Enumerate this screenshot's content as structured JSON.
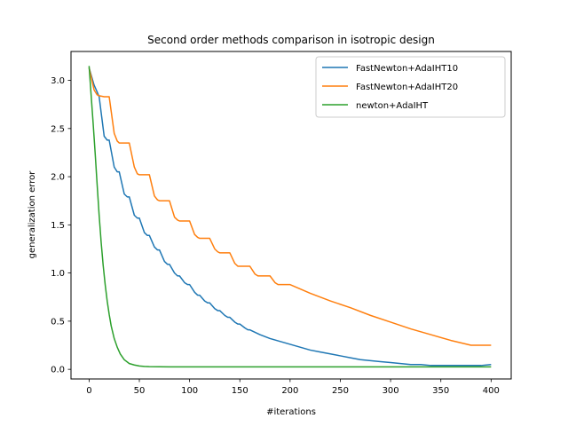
{
  "chart_data": {
    "type": "line",
    "title": "Second order methods comparison in isotropic design",
    "xlabel": "#iterations",
    "ylabel": "generalization error",
    "xlim": [
      -18,
      420
    ],
    "ylim": [
      -0.1,
      3.3
    ],
    "xticks": [
      0,
      50,
      100,
      150,
      200,
      250,
      300,
      350,
      400
    ],
    "yticks": [
      0.0,
      0.5,
      1.0,
      1.5,
      2.0,
      2.5,
      3.0
    ],
    "xtick_labels": [
      "0",
      "50",
      "100",
      "150",
      "200",
      "250",
      "300",
      "350",
      "400"
    ],
    "ytick_labels": [
      "0.0",
      "0.5",
      "1.0",
      "1.5",
      "2.0",
      "2.5",
      "3.0"
    ],
    "grid": false,
    "legend_position": "upper right",
    "series": [
      {
        "name": "FastNewton+AdaIHT10",
        "color": "#1f77b4",
        "x": [
          0,
          5,
          8,
          10,
          15,
          18,
          20,
          25,
          28,
          30,
          35,
          38,
          40,
          45,
          48,
          50,
          55,
          58,
          60,
          65,
          68,
          70,
          75,
          78,
          80,
          85,
          88,
          90,
          95,
          98,
          100,
          105,
          108,
          110,
          115,
          118,
          120,
          125,
          128,
          130,
          135,
          138,
          140,
          145,
          148,
          150,
          155,
          158,
          160,
          170,
          180,
          190,
          200,
          210,
          220,
          230,
          240,
          250,
          260,
          270,
          280,
          290,
          300,
          310,
          320,
          330,
          340,
          350,
          360,
          370,
          380,
          390,
          400
        ],
        "y": [
          3.13,
          2.95,
          2.88,
          2.83,
          2.42,
          2.38,
          2.38,
          2.1,
          2.05,
          2.05,
          1.82,
          1.79,
          1.79,
          1.6,
          1.57,
          1.57,
          1.42,
          1.39,
          1.39,
          1.27,
          1.24,
          1.24,
          1.12,
          1.09,
          1.09,
          1.0,
          0.97,
          0.97,
          0.9,
          0.88,
          0.88,
          0.8,
          0.77,
          0.77,
          0.71,
          0.69,
          0.69,
          0.63,
          0.61,
          0.61,
          0.56,
          0.54,
          0.54,
          0.49,
          0.47,
          0.47,
          0.43,
          0.41,
          0.41,
          0.36,
          0.32,
          0.29,
          0.26,
          0.23,
          0.2,
          0.18,
          0.16,
          0.14,
          0.12,
          0.1,
          0.09,
          0.08,
          0.07,
          0.06,
          0.05,
          0.05,
          0.04,
          0.04,
          0.04,
          0.04,
          0.04,
          0.04,
          0.05
        ]
      },
      {
        "name": "FastNewton+AdaIHT20",
        "color": "#ff7f0e",
        "x": [
          0,
          5,
          8,
          10,
          15,
          20,
          25,
          28,
          30,
          35,
          40,
          45,
          48,
          50,
          55,
          60,
          65,
          68,
          70,
          75,
          80,
          85,
          88,
          90,
          95,
          100,
          105,
          108,
          110,
          115,
          120,
          125,
          128,
          130,
          135,
          140,
          145,
          148,
          150,
          155,
          160,
          165,
          168,
          170,
          175,
          180,
          185,
          188,
          190,
          195,
          200,
          220,
          240,
          260,
          280,
          300,
          320,
          340,
          360,
          380,
          400
        ],
        "y": [
          3.13,
          2.9,
          2.85,
          2.84,
          2.83,
          2.83,
          2.45,
          2.37,
          2.35,
          2.35,
          2.35,
          2.1,
          2.03,
          2.02,
          2.02,
          2.02,
          1.8,
          1.76,
          1.75,
          1.75,
          1.75,
          1.58,
          1.55,
          1.54,
          1.54,
          1.54,
          1.4,
          1.37,
          1.36,
          1.36,
          1.36,
          1.25,
          1.22,
          1.21,
          1.21,
          1.21,
          1.1,
          1.07,
          1.07,
          1.07,
          1.07,
          0.99,
          0.97,
          0.97,
          0.97,
          0.97,
          0.9,
          0.88,
          0.88,
          0.88,
          0.88,
          0.79,
          0.71,
          0.64,
          0.56,
          0.49,
          0.42,
          0.36,
          0.3,
          0.25,
          0.25
        ]
      },
      {
        "name": "newton+AdaIHT",
        "color": "#2ca02c",
        "x": [
          0,
          2,
          4,
          6,
          8,
          10,
          12,
          14,
          16,
          18,
          20,
          22,
          25,
          28,
          31,
          35,
          40,
          45,
          50,
          55,
          60,
          70,
          80,
          100,
          150,
          200,
          250,
          300,
          350,
          400
        ],
        "y": [
          3.15,
          2.85,
          2.56,
          2.25,
          1.92,
          1.6,
          1.32,
          1.08,
          0.88,
          0.71,
          0.57,
          0.45,
          0.32,
          0.23,
          0.16,
          0.1,
          0.06,
          0.045,
          0.035,
          0.03,
          0.028,
          0.027,
          0.026,
          0.026,
          0.026,
          0.026,
          0.026,
          0.026,
          0.026,
          0.026
        ]
      }
    ]
  }
}
